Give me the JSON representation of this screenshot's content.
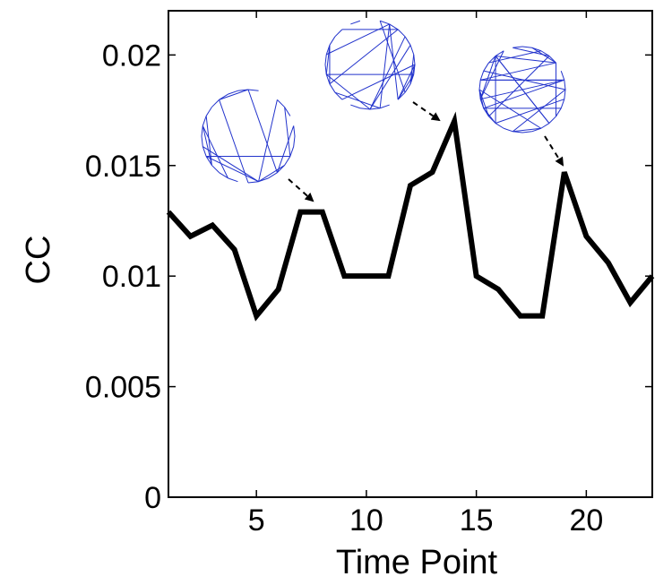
{
  "chart_data": {
    "type": "line",
    "xlabel": "Time Point",
    "ylabel": "CC",
    "xlim": [
      1,
      23
    ],
    "ylim": [
      0,
      0.022
    ],
    "x_ticks": [
      5,
      10,
      15,
      20
    ],
    "y_ticks": [
      0,
      0.005,
      0.01,
      0.015,
      0.02
    ],
    "x_tick_labels": [
      "5",
      "10",
      "15",
      "20"
    ],
    "y_tick_labels": [
      "0",
      "0.005",
      "0.01",
      "0.015",
      "0.02"
    ],
    "grid": false,
    "line_color": "#000000",
    "inset_color": "#2233cc",
    "series": [
      {
        "x": [
          1,
          2,
          3,
          4,
          5,
          6,
          7,
          8,
          9,
          10,
          11,
          12,
          13,
          14,
          15,
          16,
          17,
          18,
          19,
          20,
          21,
          22,
          23
        ],
        "values": [
          0.0129,
          0.0118,
          0.0123,
          0.0112,
          0.0082,
          0.0094,
          0.0129,
          0.0129,
          0.01,
          0.01,
          0.01,
          0.0141,
          0.0147,
          0.017,
          0.01,
          0.0094,
          0.0082,
          0.0082,
          0.0147,
          0.0118,
          0.0106,
          0.0088,
          0.01
        ]
      }
    ],
    "annotations": [
      {
        "type": "network-inset",
        "points_to_x": 8,
        "points_to_y": 0.0129,
        "icon": "network-graph-icon"
      },
      {
        "type": "network-inset",
        "points_to_x": 14,
        "points_to_y": 0.017,
        "icon": "network-graph-icon"
      },
      {
        "type": "network-inset",
        "points_to_x": 19,
        "points_to_y": 0.0147,
        "icon": "network-graph-icon"
      }
    ]
  }
}
